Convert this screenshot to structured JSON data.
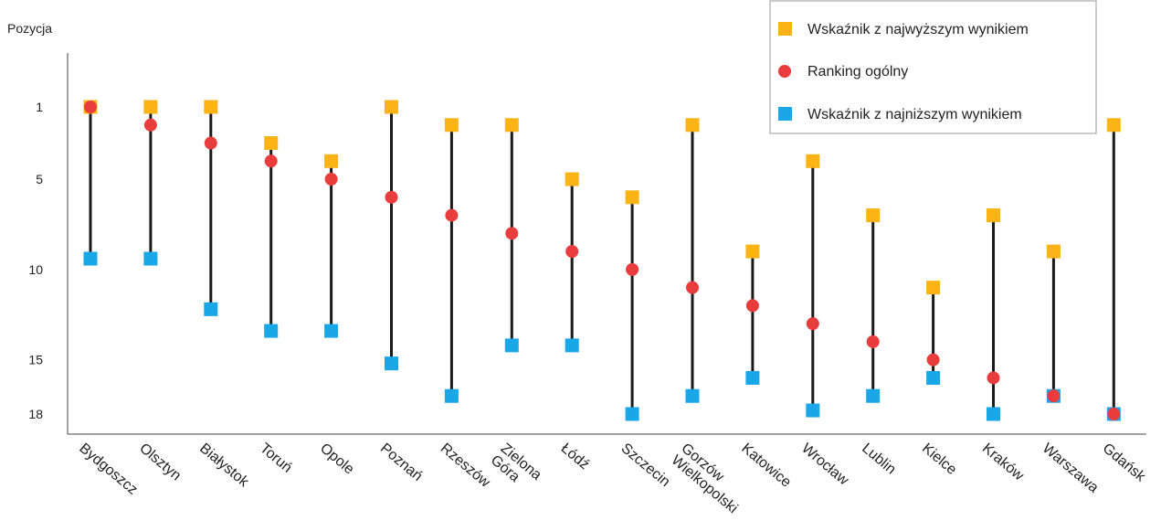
{
  "chart_data": {
    "type": "dot-range",
    "ylabel": "Pozycja",
    "y_inverted": true,
    "yticks": [
      1,
      5,
      10,
      15,
      18
    ],
    "ylim": [
      18.5,
      -1.5
    ],
    "categories": [
      "Bydgoszcz",
      "Olsztyn",
      "Białystok",
      "Toruń",
      "Opole",
      "Poznań",
      "Rzeszów",
      "Zielona\nGóra",
      "Łódź",
      "Szczecin",
      "Gorzów\nWielkopolski",
      "Katowice",
      "Wrocław",
      "Lublin",
      "Kielce",
      "Kraków",
      "Warszawa",
      "Gdańsk"
    ],
    "series": [
      {
        "name": "Wskaźnik z najwyższym wynikiem",
        "marker": "square",
        "color": "#fbb315",
        "values": [
          1,
          1,
          1,
          3,
          4,
          1,
          2,
          2,
          5,
          6,
          2,
          9,
          4,
          7,
          11,
          7,
          9,
          2
        ]
      },
      {
        "name": "Ranking ogólny",
        "marker": "circle",
        "color": "#e93c3c",
        "values": [
          1,
          2,
          3,
          4,
          5,
          6,
          7,
          8,
          9,
          10,
          11,
          12,
          13,
          14,
          15,
          16,
          17,
          18
        ]
      },
      {
        "name": "Wskaźnik z najniższym wynikiem",
        "marker": "square",
        "color": "#1aa7e8",
        "values": [
          9.4,
          9.4,
          12.2,
          13.4,
          13.4,
          15.2,
          17,
          14.2,
          14.2,
          18,
          17,
          16,
          17.8,
          17,
          16,
          18,
          17,
          18
        ]
      }
    ],
    "legend_position": "top-right",
    "line_color": "#1a1a1a"
  }
}
